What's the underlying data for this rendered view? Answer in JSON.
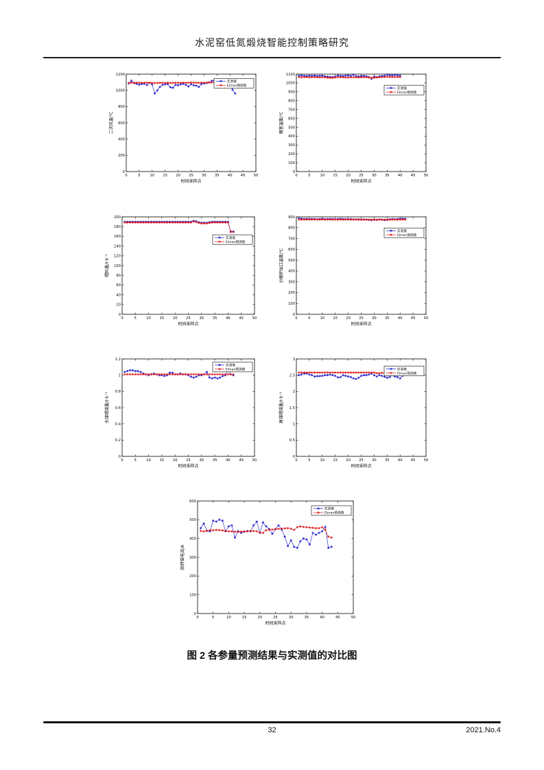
{
  "header": {
    "title": "水泥窑低氮煅烧智能控制策略研究"
  },
  "caption": "图 2 各参量预测结果与实测值的对比图",
  "footer": {
    "page_number": "32",
    "issue": "2021.No.4"
  },
  "colors": {
    "measured": "#1414cc",
    "predicted": "#e01010",
    "axis": "#000000"
  },
  "legend": {
    "measured_label": "实测值",
    "predicted_label": "Elman预测值"
  },
  "chart_data": [
    {
      "type": "line",
      "title": "",
      "xlabel": "时间采样点",
      "ylabel": "二次风温/℃",
      "xlim": [
        0,
        50
      ],
      "xtick_step": 5,
      "ylim": [
        0,
        1200
      ],
      "ytick_step": 200,
      "grid": false,
      "legend_position": "top-right",
      "series": [
        {
          "name": "实测值",
          "color": "#1414cc",
          "values": [
            1085,
            1120,
            1090,
            1080,
            1070,
            1078,
            1082,
            1066,
            1092,
            1072,
            962,
            1000,
            1042,
            1068,
            1074,
            1078,
            1038,
            1032,
            1068,
            1062,
            1074,
            1080,
            1068,
            1048,
            1075,
            1062,
            1058,
            1042,
            1078,
            1085,
            1090,
            1098,
            1118,
            1122,
            1108,
            1118,
            1082,
            1072,
            1090,
            1098,
            1008,
            962
          ]
        },
        {
          "name": "Elman预测值",
          "color": "#e01010",
          "values": [
            1092,
            1094,
            1093,
            1095,
            1094,
            1093,
            1094,
            1095,
            1093,
            1092,
            1090,
            1092,
            1093,
            1094,
            1092,
            1093,
            1091,
            1092,
            1094,
            1093,
            1094,
            1095,
            1093,
            1094,
            1096,
            1095,
            1094,
            1093,
            1095,
            1094,
            1095,
            1096,
            1098,
            1100,
            1097,
            1096,
            1094,
            1093,
            1096,
            1098,
            1072,
            1058
          ]
        }
      ]
    },
    {
      "type": "line",
      "title": "",
      "xlabel": "时间采样点",
      "ylabel": "烟室温度/℃",
      "xlim": [
        0,
        50
      ],
      "xtick_step": 5,
      "ylim": [
        0,
        1100
      ],
      "ytick_step": 100,
      "grid": false,
      "legend_position": "upper-right",
      "series": [
        {
          "name": "实测值",
          "color": "#1414cc",
          "values": [
            1082,
            1086,
            1080,
            1078,
            1082,
            1080,
            1084,
            1078,
            1080,
            1082,
            1076,
            1072,
            1068,
            1066,
            1072,
            1086,
            1080,
            1078,
            1082,
            1086,
            1080,
            1092,
            1078,
            1074,
            1078,
            1080,
            1076,
            1068,
            1048,
            1072,
            1066,
            1074,
            1078,
            1082,
            1094,
            1088,
            1086,
            1092,
            1088,
            1082
          ]
        },
        {
          "name": "Elman预测值",
          "color": "#e01010",
          "values": [
            1066,
            1064,
            1065,
            1066,
            1064,
            1065,
            1066,
            1064,
            1063,
            1065,
            1064,
            1060,
            1058,
            1058,
            1062,
            1066,
            1065,
            1064,
            1062,
            1063,
            1064,
            1065,
            1064,
            1062,
            1064,
            1065,
            1064,
            1062,
            1058,
            1060,
            1062,
            1064,
            1066,
            1068,
            1070,
            1068,
            1067,
            1068,
            1068,
            1066
          ]
        }
      ]
    },
    {
      "type": "line",
      "title": "",
      "xlabel": "时间采样点",
      "ylabel": "喂料量/t·h⁻¹",
      "xlim": [
        0,
        50
      ],
      "xtick_step": 5,
      "ylim": [
        0,
        200
      ],
      "ytick_step": 20,
      "grid": false,
      "legend_position": "mid-right",
      "series": [
        {
          "name": "实测值",
          "color": "#1414cc",
          "values": [
            190,
            190,
            190,
            190,
            190,
            190,
            190,
            190,
            190,
            190,
            190,
            190,
            190,
            190,
            190,
            190,
            190,
            190,
            190,
            190,
            190,
            190,
            190,
            190,
            190,
            190,
            192,
            191,
            189,
            188,
            188,
            188,
            189,
            190,
            190,
            190,
            190,
            190,
            190,
            190,
            170,
            170
          ]
        },
        {
          "name": "Elman预测值",
          "color": "#e01010",
          "values": [
            188.5,
            188.5,
            188.5,
            188.5,
            188.5,
            188.5,
            188.5,
            188.5,
            188.5,
            188.5,
            188.5,
            188.5,
            188.5,
            188.5,
            188.5,
            188.5,
            188.5,
            188.5,
            188.5,
            188.5,
            188.5,
            188.5,
            188.5,
            188.5,
            188.5,
            188.5,
            190.5,
            189.5,
            187.5,
            186.5,
            186.5,
            186.5,
            187.5,
            188.5,
            188.5,
            188.5,
            188.5,
            188.5,
            188.5,
            188.5,
            169,
            169
          ]
        }
      ]
    },
    {
      "type": "line",
      "title": "",
      "xlabel": "时间采样点",
      "ylabel": "分解炉出口温度/℃",
      "xlim": [
        0,
        50
      ],
      "xtick_step": 5,
      "ylim": [
        0,
        900
      ],
      "ytick_step": 100,
      "grid": false,
      "legend_position": "upper-right",
      "series": [
        {
          "name": "实测值",
          "color": "#1414cc",
          "values": [
            888,
            884,
            880,
            882,
            879,
            881,
            880,
            878,
            880,
            882,
            879,
            880,
            881,
            880,
            878,
            880,
            882,
            880,
            879,
            878,
            880,
            877,
            876,
            878,
            874,
            876,
            875,
            872,
            870,
            874,
            872,
            876,
            874,
            870,
            872,
            878,
            880,
            878,
            880,
            882,
            884,
            882
          ]
        },
        {
          "name": "Elman预测值",
          "color": "#e01010",
          "values": [
            876,
            875,
            876,
            875,
            876,
            875,
            876,
            876,
            875,
            876,
            875,
            876,
            875,
            875,
            876,
            875,
            876,
            875,
            876,
            875,
            875,
            876,
            875,
            874,
            875,
            874,
            875,
            874,
            874,
            875,
            874,
            875,
            874,
            874,
            875,
            874,
            875,
            875,
            874,
            875,
            876,
            875
          ]
        }
      ]
    },
    {
      "type": "line",
      "title": "",
      "xlabel": "时间采样点",
      "ylabel": "头煤喂煤量/t·h⁻¹",
      "xlim": [
        0,
        50
      ],
      "xtick_step": 5,
      "ylim": [
        0,
        1.2
      ],
      "ytick_step": 0.2,
      "grid": false,
      "legend_position": "top-right",
      "series": [
        {
          "name": "实测值",
          "color": "#1414cc",
          "values": [
            1.04,
            1.05,
            1.06,
            1.06,
            1.05,
            1.05,
            1.04,
            1.02,
            1.01,
            1.0,
            1.01,
            1.02,
            1.01,
            1.0,
            1.0,
            0.99,
            1.0,
            1.03,
            1.03,
            1.01,
            1.01,
            1.02,
            1.01,
            1.01,
            1.0,
            0.98,
            0.97,
            0.98,
            1.0,
            1.0,
            1.01,
            1.04,
            0.97,
            0.96,
            0.97,
            0.96,
            0.97,
            0.99,
            1.0,
            1.06,
            1.01,
            1.0
          ]
        },
        {
          "name": "Elman预测值",
          "color": "#e01010",
          "values": [
            1.01,
            1.01,
            1.01,
            1.01,
            1.01,
            1.01,
            1.01,
            1.01,
            1.01,
            1.01,
            1.01,
            1.01,
            1.01,
            1.01,
            1.01,
            1.01,
            1.01,
            1.01,
            1.01,
            1.01,
            1.01,
            1.01,
            1.01,
            1.01,
            1.01,
            1.01,
            1.01,
            1.01,
            1.01,
            1.01,
            1.01,
            1.01,
            1.01,
            1.01,
            1.01,
            1.01,
            1.01,
            1.01,
            1.01,
            1.01,
            1.01,
            1.01
          ]
        }
      ]
    },
    {
      "type": "line",
      "title": "",
      "xlabel": "时间采样点",
      "ylabel": "尾煤喂煤量/t·h⁻¹",
      "xlim": [
        0,
        50
      ],
      "xtick_step": 5,
      "ylim": [
        0,
        3
      ],
      "ytick_step": 0.5,
      "grid": false,
      "legend_position": "top-right",
      "series": [
        {
          "name": "实测值",
          "color": "#1414cc",
          "values": [
            2.5,
            2.52,
            2.55,
            2.55,
            2.52,
            2.5,
            2.46,
            2.47,
            2.47,
            2.48,
            2.5,
            2.5,
            2.52,
            2.5,
            2.48,
            2.43,
            2.44,
            2.5,
            2.48,
            2.46,
            2.44,
            2.4,
            2.38,
            2.42,
            2.48,
            2.5,
            2.5,
            2.52,
            2.55,
            2.5,
            2.46,
            2.5,
            2.48,
            2.45,
            2.42,
            2.44,
            2.5,
            2.46,
            2.44,
            2.4,
            2.48,
            2.55
          ]
        },
        {
          "name": "Elman预测值",
          "color": "#e01010",
          "values": [
            2.58,
            2.58,
            2.58,
            2.58,
            2.58,
            2.58,
            2.58,
            2.58,
            2.58,
            2.58,
            2.58,
            2.58,
            2.58,
            2.58,
            2.58,
            2.58,
            2.58,
            2.58,
            2.58,
            2.58,
            2.58,
            2.58,
            2.58,
            2.58,
            2.58,
            2.58,
            2.58,
            2.58,
            2.58,
            2.58,
            2.56,
            2.56,
            2.57,
            2.57,
            2.57,
            2.57,
            2.58,
            2.58,
            2.58,
            2.58,
            2.58,
            2.58
          ]
        }
      ]
    },
    {
      "type": "line",
      "title": "",
      "xlabel": "时间采样点",
      "ylabel": "回转窑电流/A",
      "xlim": [
        0,
        50
      ],
      "xtick_step": 5,
      "ylim": [
        0,
        600
      ],
      "ytick_step": 100,
      "grid": false,
      "legend_position": "top-right",
      "series": [
        {
          "name": "实测值",
          "color": "#1414cc",
          "values": [
            455,
            480,
            440,
            438,
            495,
            490,
            500,
            495,
            438,
            465,
            470,
            405,
            440,
            430,
            436,
            440,
            438,
            470,
            490,
            430,
            486,
            465,
            450,
            425,
            450,
            470,
            448,
            410,
            360,
            390,
            355,
            350,
            385,
            400,
            395,
            368,
            430,
            420,
            430,
            438,
            462,
            350,
            356
          ]
        },
        {
          "name": "Elman预测值",
          "color": "#e01010",
          "values": [
            440,
            438,
            441,
            444,
            444,
            446,
            445,
            443,
            440,
            438,
            438,
            436,
            435,
            436,
            438,
            438,
            440,
            440,
            438,
            431,
            430,
            444,
            447,
            448,
            450,
            451,
            452,
            454,
            455,
            452,
            446,
            460,
            464,
            462,
            460,
            458,
            457,
            455,
            455,
            460,
            446,
            410,
            405
          ]
        }
      ]
    }
  ]
}
